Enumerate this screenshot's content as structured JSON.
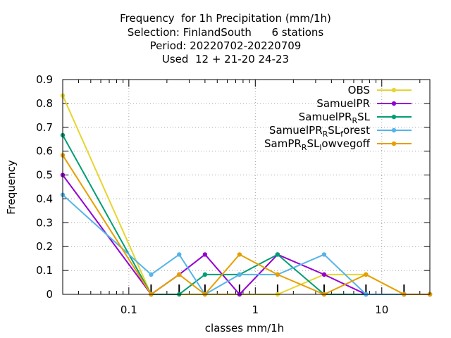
{
  "title_lines": [
    "Frequency  for 1h Precipitation (mm/1h)",
    "Selection: FinlandSouth      6 stations",
    "Period: 20220702-20220709",
    "Used  12 + 21-20 24-23"
  ],
  "chart_data": {
    "type": "line",
    "xlabel": "classes mm/1h",
    "ylabel": "Frequency",
    "x_scale": "log",
    "xlim": [
      0.03,
      24
    ],
    "ylim": [
      0,
      0.9
    ],
    "x_ticks": [
      0.1,
      1,
      10
    ],
    "x_tick_labels": [
      "0.1",
      "1",
      "10"
    ],
    "y_ticks": [
      0,
      0.1,
      0.2,
      0.3,
      0.4,
      0.5,
      0.6,
      0.7,
      0.8,
      0.9
    ],
    "y_tick_labels": [
      "0",
      "0.1",
      "0.2",
      "0.3",
      "0.4",
      "0.5",
      "0.6",
      "0.7",
      "0.8",
      "0.9"
    ],
    "grid": true,
    "legend_position": "top-right",
    "x": [
      0.03,
      0.15,
      0.25,
      0.4,
      0.75,
      1.5,
      3.5,
      7.5,
      15,
      24
    ],
    "series": [
      {
        "name": "OBS",
        "legend_main": "OBS",
        "legend_sub": "",
        "legend_tail": "",
        "legend_sub2": "",
        "legend_tail2": "",
        "color": "#e6d530",
        "values": [
          0.833,
          0,
          0,
          0,
          0,
          0,
          0.083,
          0.083,
          0,
          0
        ]
      },
      {
        "name": "SamuelPR",
        "legend_main": "SamuelPR",
        "legend_sub": "",
        "legend_tail": "",
        "legend_sub2": "",
        "legend_tail2": "",
        "color": "#9400d3",
        "values": [
          0.5,
          0,
          0.083,
          0.167,
          0,
          0.167,
          0.083,
          0,
          0,
          0
        ]
      },
      {
        "name": "SamuelPR_RSL",
        "legend_main": "SamuelPR",
        "legend_sub": "R",
        "legend_tail": "SL",
        "legend_sub2": "",
        "legend_tail2": "",
        "color": "#009e73",
        "values": [
          0.667,
          0,
          0,
          0.083,
          0.083,
          0.167,
          0,
          0,
          0,
          0
        ]
      },
      {
        "name": "SamuelPR_RSL_forest",
        "legend_main": "SamuelPR",
        "legend_sub": "R",
        "legend_tail": "SL",
        "legend_sub2": "f",
        "legend_tail2": "orest",
        "color": "#56b4e9",
        "values": [
          0.417,
          0.083,
          0.167,
          0,
          0.083,
          0.083,
          0.167,
          0,
          0,
          0
        ]
      },
      {
        "name": "SamPR_RSL_lowvegoff",
        "legend_main": "SamPR",
        "legend_sub": "R",
        "legend_tail": "SL",
        "legend_sub2": "l",
        "legend_tail2": "owvegoff",
        "color": "#e69f00",
        "values": [
          0.583,
          0,
          0.083,
          0,
          0.167,
          0.083,
          0,
          0.083,
          0,
          0
        ]
      }
    ]
  }
}
